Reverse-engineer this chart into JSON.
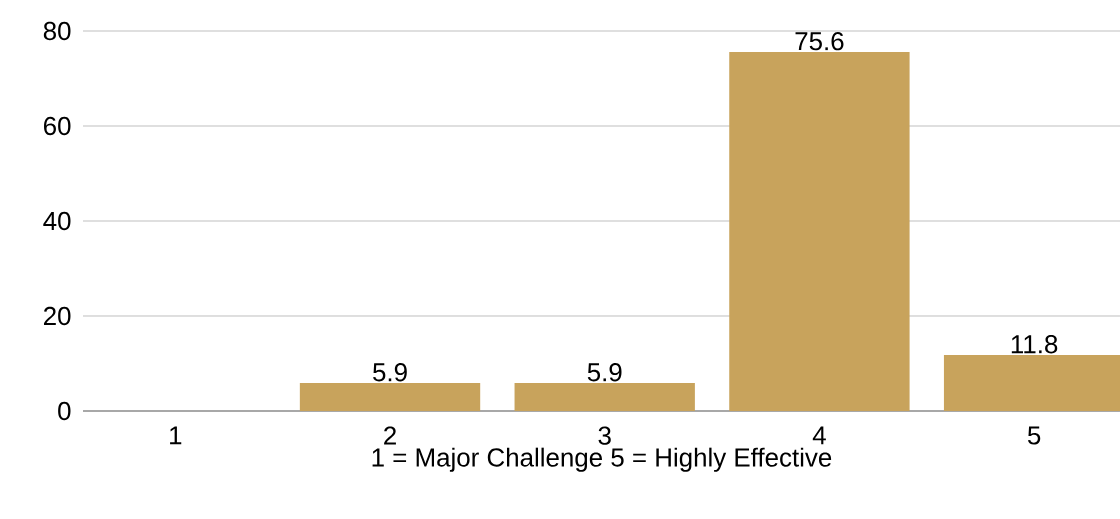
{
  "chart_data": {
    "type": "bar",
    "xlabel": "1 = Major Challenge 5 = Highly Effective",
    "categories": [
      "1",
      "2",
      "3",
      "4",
      "5"
    ],
    "values": [
      0,
      5.9,
      5.9,
      75.6,
      11.8
    ],
    "value_labels": [
      null,
      "5.9",
      "5.9",
      "75.6",
      "11.8"
    ],
    "color": "#c8a35c",
    "ylim": [
      0,
      80
    ],
    "yticks": [
      0,
      20,
      40,
      60,
      80
    ],
    "grid": "y"
  }
}
